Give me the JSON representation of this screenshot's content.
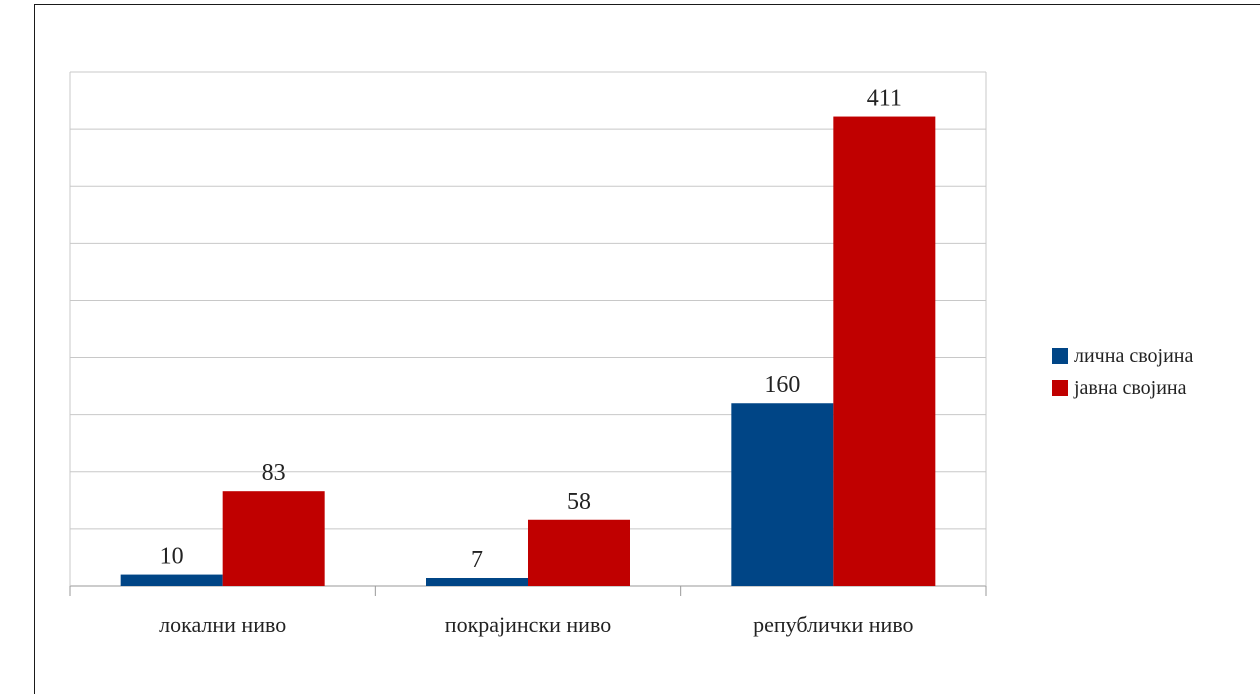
{
  "chart_data": {
    "type": "bar",
    "categories": [
      "локални ниво",
      "покрајински ниво",
      "републички ниво"
    ],
    "series": [
      {
        "name": "лична својина",
        "values": [
          10,
          7,
          160
        ],
        "color": "#004586"
      },
      {
        "name": "јавна својина",
        "values": [
          83,
          58,
          411
        ],
        "color": "#c00000"
      }
    ],
    "ylim": [
      0,
      450
    ],
    "grid": true,
    "legend_position": "right"
  }
}
